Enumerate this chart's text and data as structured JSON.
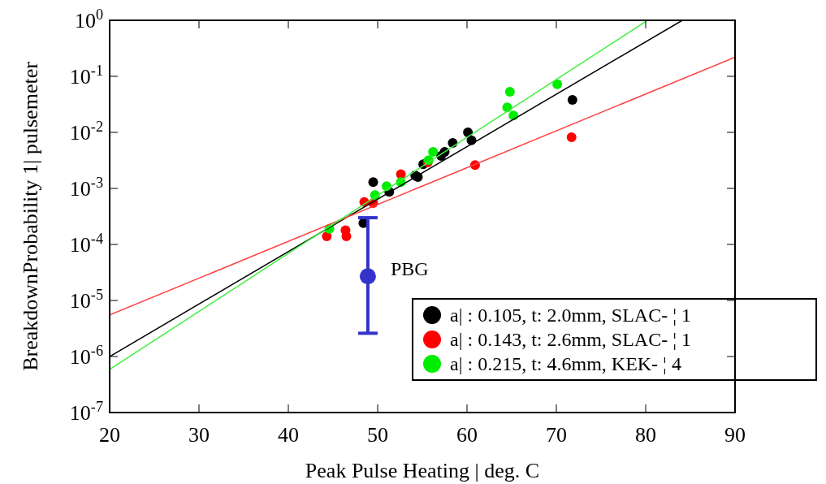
{
  "chart_data": {
    "type": "scatter",
    "xlabel": "Peak Pulse Heating | deg. C",
    "ylabel": "BreakdownProbability 1| pulsemeter",
    "log": "y",
    "xlim": [
      20,
      90
    ],
    "xticks": [
      20,
      30,
      40,
      50,
      60,
      70,
      80,
      90
    ],
    "ylim": [
      1e-07,
      1
    ],
    "yticks": [
      {
        "value": 1e-07,
        "label": "10$^{-7}$"
      },
      {
        "value": 1e-06,
        "label": "10$^{-6}$"
      },
      {
        "value": 1e-05,
        "label": "10$^{-5}$"
      },
      {
        "value": 0.0001,
        "label": "10$^{-4}$"
      },
      {
        "value": 0.001,
        "label": "10$^{-3}$"
      },
      {
        "value": 0.01,
        "label": "10$^{-2}$"
      },
      {
        "value": 0.1,
        "label": "10$^{-1}$"
      },
      {
        "value": 1,
        "label": "10$^{0}$"
      }
    ],
    "legend": "bottom right",
    "marker": "circle",
    "grid": false,
    "series": [
      {
        "name": "a| : 0.105, t: 2.0mm, SLAC- ¦ 1",
        "color": "#000000",
        "x": [
          48.4,
          49.5,
          51.3,
          54.2,
          54.5,
          55.1,
          57.1,
          57.5,
          58.4,
          60.1,
          60.5,
          71.8
        ],
        "values": [
          0.00024,
          0.0013,
          0.00087,
          0.0017,
          0.0016,
          0.0027,
          0.0038,
          0.0045,
          0.0065,
          0.01,
          0.0072,
          0.038
        ]
      },
      {
        "name": "a| : 0.143, t: 2.6mm, SLAC- ¦ 1",
        "color": "#ff0000",
        "x": [
          44.3,
          46.4,
          46.5,
          48.5,
          49.5,
          52.6,
          55.6,
          60.9,
          71.7
        ],
        "values": [
          0.00014,
          0.00018,
          0.00014,
          0.00057,
          0.00055,
          0.0018,
          0.0029,
          0.0026,
          0.0082
        ]
      },
      {
        "name": "a| : 0.215, t: 4.6mm, KEK- ¦ 4",
        "color": "#00ee00",
        "x": [
          44.6,
          49.7,
          51,
          52.6,
          55.7,
          56.2,
          64.5,
          64.8,
          65.2,
          70.1
        ],
        "values": [
          0.00019,
          0.00076,
          0.0011,
          0.0013,
          0.0032,
          0.0045,
          0.028,
          0.053,
          0.02,
          0.072
        ]
      },
      {
        "type": "line",
        "color": "#000000",
        "marker": "none",
        "x": [
          20,
          84.1
        ],
        "values": [
          1e-06,
          1
        ]
      },
      {
        "type": "line",
        "color": "#ff4040",
        "marker": "none",
        "x": [
          20,
          90
        ],
        "values": [
          5.5e-06,
          0.22
        ]
      },
      {
        "type": "line",
        "color": "#40ee40",
        "marker": "none",
        "x": [
          20,
          80.2
        ],
        "values": [
          5.9e-07,
          1
        ]
      },
      {
        "color": "#3333cc",
        "x": [
          48.9
        ],
        "values": [
          2.7e-05
        ],
        "errors": [
          [
            2.6e-06,
            0.0003
          ]
        ]
      }
    ],
    "annotations": [
      {
        "text": "PBG",
        "x": 48.9,
        "y": 2.7e-05
      }
    ]
  }
}
